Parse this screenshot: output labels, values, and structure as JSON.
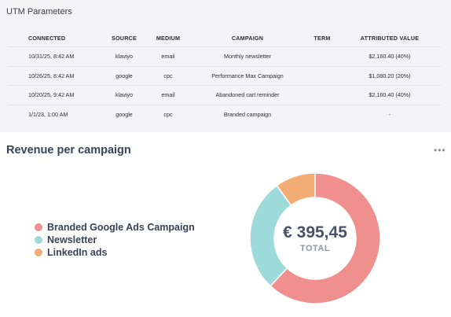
{
  "utm": {
    "title": "UTM Parameters",
    "headers": {
      "connected": "CONNECTED",
      "source": "SOURCE",
      "medium": "MEDIUM",
      "campaign": "CAMPAIGN",
      "term": "TERM",
      "attributed_value": "ATTRIBUTED VALUE"
    },
    "rows": [
      {
        "connected": "10/31/25, 8:42 AM",
        "source": "klaviyo",
        "medium": "email",
        "campaign": "Monthly newsletter",
        "term": "",
        "attributed_value": "$2,160.40 (40%)"
      },
      {
        "connected": "10/26/25, 8:42 AM",
        "source": "google",
        "medium": "cpc",
        "campaign": "Performance Max Campaign",
        "term": "",
        "attributed_value": "$1,080.20 (20%)"
      },
      {
        "connected": "10/20/25, 9:42 AM",
        "source": "klaviyo",
        "medium": "email",
        "campaign": "Abandoned cart reminder",
        "term": "",
        "attributed_value": "$2,160.40 (40%)"
      },
      {
        "connected": "1/1/23, 1:00 AM",
        "source": "google",
        "medium": "cpc",
        "campaign": "Branded campaign",
        "term": "",
        "attributed_value": "-"
      }
    ]
  },
  "revenue": {
    "title": "Revenue per campaign",
    "more_icon": "more-horizontal-icon",
    "total_value": "€ 395,45",
    "total_label": "TOTAL",
    "legend": [
      {
        "label": "Branded Google Ads Campaign",
        "color": "#ef908f"
      },
      {
        "label": "Newsletter",
        "color": "#9ddada"
      },
      {
        "label": "LinkedIn ads",
        "color": "#f2ac74"
      }
    ]
  },
  "chart_data": {
    "type": "pie",
    "categories": [
      "Branded Google Ads Campaign",
      "Newsletter",
      "LinkedIn ads"
    ],
    "values": [
      0.62,
      0.28,
      0.1
    ],
    "colors": [
      "#ef908f",
      "#9ddada",
      "#f2ac74"
    ],
    "title": "Revenue per campaign",
    "legend": "left"
  }
}
